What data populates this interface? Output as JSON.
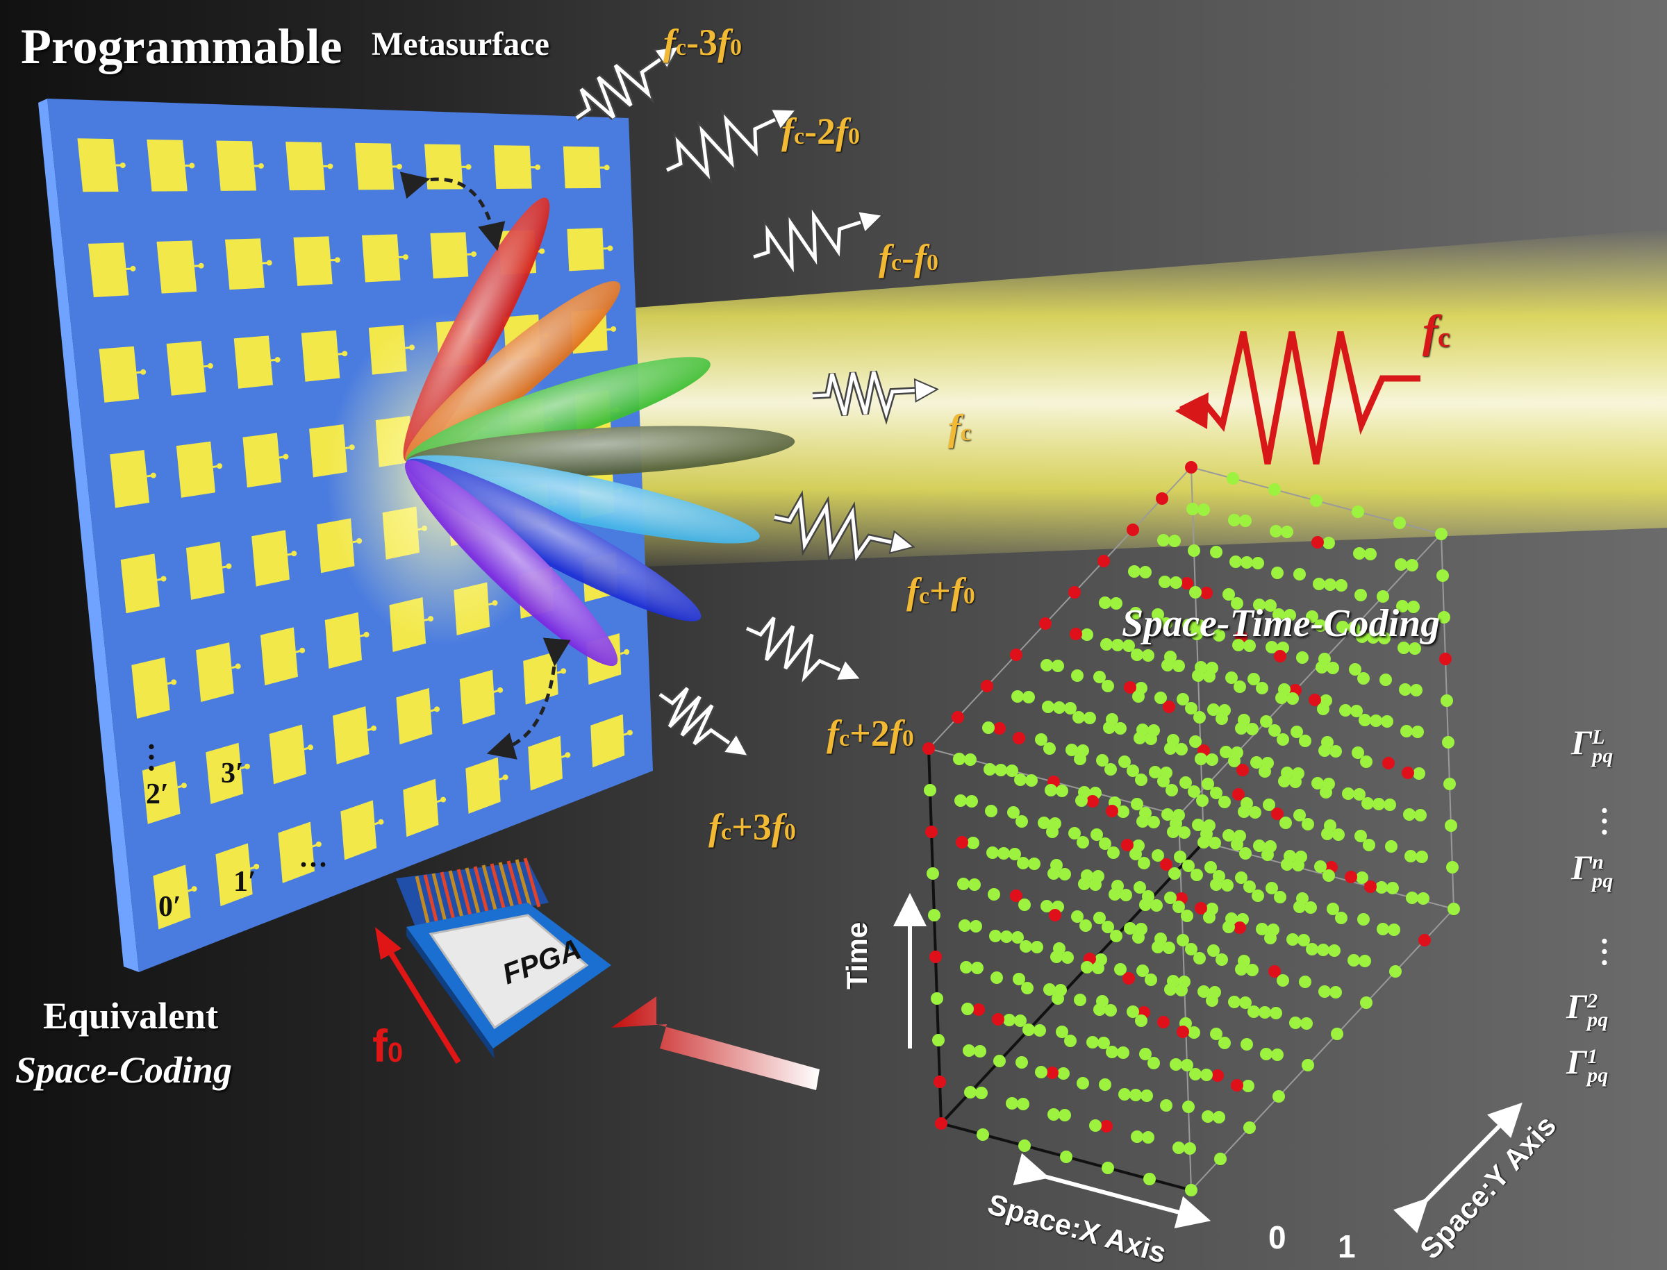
{
  "title": {
    "main": "Programmable",
    "sub": "Metasurface"
  },
  "equivalent": {
    "line1": "Equivalent",
    "line2": "Space-Coding"
  },
  "stc_title": "Space-Time-Coding",
  "incident": {
    "label": "f",
    "sub": "c"
  },
  "modulation": {
    "label": "f",
    "sub": "0"
  },
  "fpga": "FPGA",
  "harmonics": [
    {
      "pre": "f",
      "sub": "c",
      "op": "-3",
      "f": "f",
      "fsub": "0"
    },
    {
      "pre": "f",
      "sub": "c",
      "op": "-2",
      "f": "f",
      "fsub": "0"
    },
    {
      "pre": "f",
      "sub": "c",
      "op": "-",
      "f": "f",
      "fsub": "0"
    },
    {
      "pre": "f",
      "sub": "c",
      "op": "",
      "f": "",
      "fsub": ""
    },
    {
      "pre": "f",
      "sub": "c",
      "op": "+",
      "f": "f",
      "fsub": "0"
    },
    {
      "pre": "f",
      "sub": "c",
      "op": "+2",
      "f": "f",
      "fsub": "0"
    },
    {
      "pre": "f",
      "sub": "c",
      "op": "+3",
      "f": "f",
      "fsub": "0"
    }
  ],
  "gamma": [
    {
      "sym": "Γ",
      "sup": "L",
      "sub": "pq"
    },
    {
      "sym": "Γ",
      "sup": "n",
      "sub": "pq"
    },
    {
      "sym": "Γ",
      "sup": "2",
      "sub": "pq"
    },
    {
      "sym": "Γ",
      "sup": "1",
      "sub": "pq"
    }
  ],
  "cell_labels": [
    "0′",
    "1′",
    "2′",
    "3′"
  ],
  "ellipsis": "···",
  "axes": {
    "time": "Time",
    "x": "Space:X Axis",
    "y": "Space:Y Axis",
    "zero": "0",
    "one": "1"
  },
  "colors": {
    "metasurface": "#4a7ce0",
    "patch": "#f2e84a",
    "beam": "#fbf57a",
    "label": "#f2b935",
    "incident": "#d81818",
    "dot_green": "#9cf23e",
    "dot_red": "#e0101a"
  },
  "beam_colors": [
    "#d4231d",
    "#e07421",
    "#3fbf35",
    "#55623a",
    "#46b5e8",
    "#1d2fd4",
    "#7b2be0"
  ]
}
